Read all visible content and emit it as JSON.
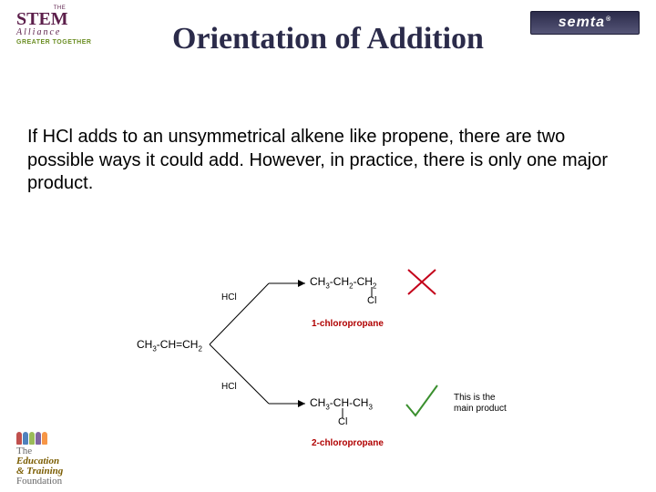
{
  "title": "Orientation of Addition",
  "body": "If HCl adds to an unsymmetrical alkene like propene, there are two possible ways it could add. However, in practice, there is only one major product.",
  "diagram": {
    "reactant": {
      "html": "CH<sub>3</sub>-CH=CH<sub>2</sub>"
    },
    "reagent": "HCl",
    "product1": {
      "formula_html": "CH<sub>3</sub>-CH<sub>2</sub>-CH<sub>2</sub>",
      "substituent": "Cl",
      "name": "1-chloropropane"
    },
    "product2": {
      "formula_html": "CH<sub>3</sub>-CH-CH<sub>3</sub>",
      "substituent": "Cl",
      "name": "2-chloropropane"
    },
    "note": "This is the main product",
    "cross_color": "#c4001a",
    "tick_color": "#3a8f2e",
    "line_color": "#000000"
  },
  "logos": {
    "stem": {
      "the": "THE",
      "main": "STEM",
      "sub": "Alliance",
      "tagline": "GREATER TOGETHER",
      "under": ""
    },
    "semta": {
      "text": "semta",
      "rmark": "®"
    },
    "etf": {
      "brand": "",
      "line1": "The",
      "line2_bold": "Education",
      "line3_bold": "& Training",
      "line4": "Foundation"
    }
  },
  "colors": {
    "title": "#2b2b4a",
    "text": "#000000",
    "label_red": "#b00000",
    "stem_purple": "#5C1F4B",
    "stem_green": "#6B8E23"
  }
}
